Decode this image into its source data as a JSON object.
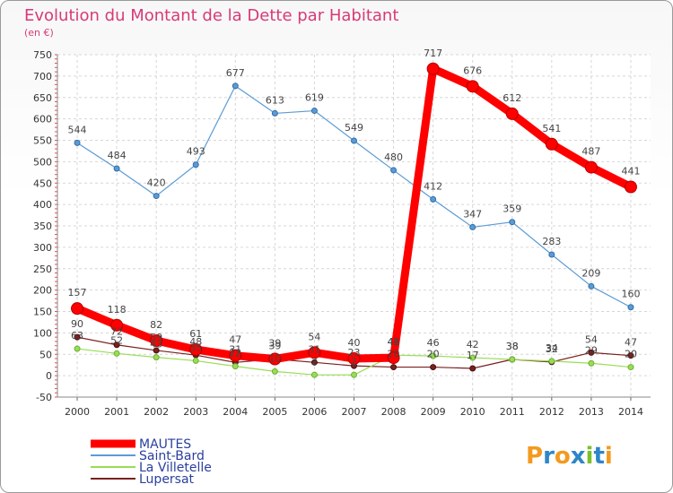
{
  "chart_data": {
    "type": "line",
    "title": "Evolution du Montant de la Dette par Habitant",
    "unit": "(en €)",
    "xlabel": "",
    "ylabel": "",
    "x": [
      2000,
      2001,
      2002,
      2003,
      2004,
      2005,
      2006,
      2007,
      2008,
      2009,
      2010,
      2011,
      2012,
      2013,
      2014
    ],
    "ylim": [
      -50,
      750
    ],
    "yticks": [
      -50,
      0,
      50,
      100,
      150,
      200,
      250,
      300,
      350,
      400,
      450,
      500,
      550,
      600,
      650,
      700,
      750
    ],
    "grid": true,
    "legend_position": "bottom-left",
    "series": [
      {
        "name": "MAUTES",
        "color": "#ff0000",
        "values": [
          157,
          118,
          82,
          61,
          47,
          39,
          54,
          40,
          42,
          717,
          676,
          612,
          541,
          487,
          441
        ],
        "shown_values": [
          157,
          118,
          82,
          61,
          47,
          39,
          54,
          40,
          42,
          717,
          676,
          612,
          541,
          487,
          441
        ]
      },
      {
        "name": "Saint-Bard",
        "color": "#5b9bd5",
        "values": [
          544,
          484,
          420,
          493,
          677,
          613,
          619,
          549,
          480,
          412,
          347,
          359,
          283,
          209,
          160
        ],
        "shown_values": [
          544,
          484,
          420,
          493,
          677,
          613,
          619,
          549,
          480,
          412,
          347,
          359,
          283,
          209,
          160
        ]
      },
      {
        "name": "La Villetelle",
        "color": "#99dd55",
        "values": [
          63,
          52,
          43,
          35,
          22,
          10,
          2,
          2,
          48,
          46,
          42,
          38,
          34,
          29,
          20
        ],
        "shown_values": [
          63,
          52,
          43,
          35,
          22,
          10,
          2,
          2,
          48,
          46,
          42,
          38,
          34,
          29,
          20
        ]
      },
      {
        "name": "Lupersat",
        "color": "#7a1f1f",
        "values": [
          90,
          72,
          59,
          48,
          31,
          39,
          31,
          23,
          20,
          20,
          17,
          38,
          32,
          54,
          47
        ],
        "shown_values": [
          90,
          72,
          59,
          48,
          31,
          39,
          31,
          23,
          20,
          20,
          17,
          38,
          32,
          54,
          47
        ]
      }
    ]
  },
  "logo": {
    "text": "Proxiti"
  }
}
